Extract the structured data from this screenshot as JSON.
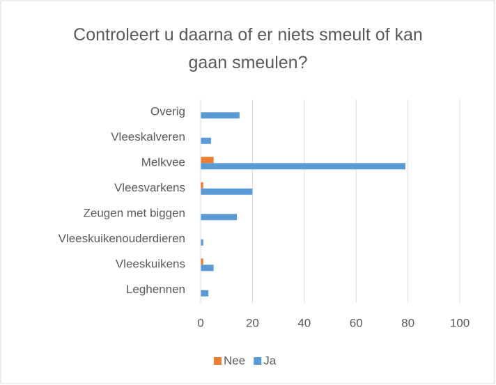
{
  "chart_data": {
    "type": "bar",
    "orientation": "horizontal",
    "title": "Controleert u daarna of er niets smeult of kan gaan smeulen?",
    "categories": [
      "Overig",
      "Vleeskalveren",
      "Melkvee",
      "Vleesvarkens",
      "Zeugen met biggen",
      "Vleeskuikenouderdieren",
      "Vleeskuikens",
      "Leghennen"
    ],
    "series": [
      {
        "name": "Nee",
        "color": "#ed7d31",
        "values": [
          0,
          0,
          5,
          1,
          0,
          0,
          1,
          0
        ]
      },
      {
        "name": "Ja",
        "color": "#5b9bd5",
        "values": [
          15,
          4,
          79,
          20,
          14,
          1,
          5,
          3
        ]
      }
    ],
    "xlim": [
      0,
      100
    ],
    "xticks": [
      0,
      20,
      40,
      60,
      80,
      100
    ],
    "grid": true,
    "legend": "bottom"
  }
}
